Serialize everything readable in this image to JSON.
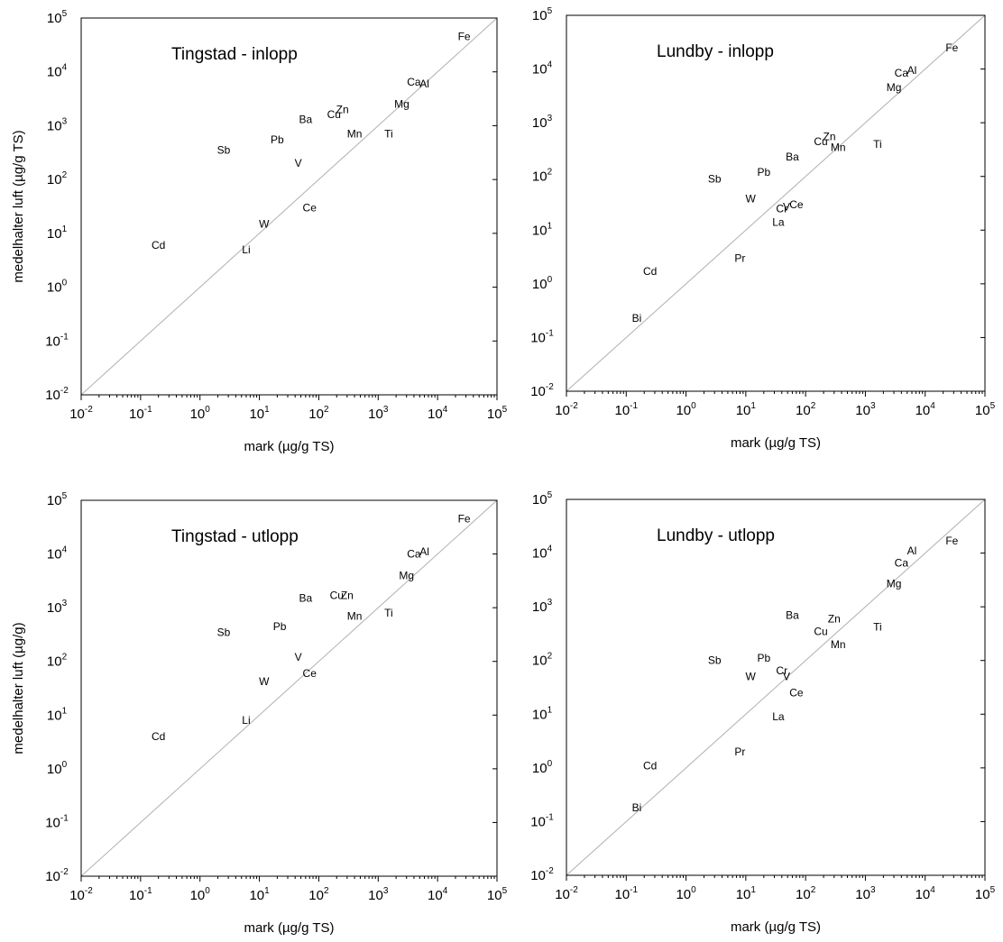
{
  "chart_data": [
    {
      "type": "scatter",
      "title": "Tingstad - inlopp",
      "xlabel": "mark (µg/g TS)",
      "ylabel": "medelhalter luft (µg/g TS)",
      "xlim": [
        0.01,
        100000
      ],
      "ylim": [
        0.01,
        100000
      ],
      "scale": "log",
      "reference_line": "1:1",
      "points": [
        {
          "label": "Fe",
          "x": 28000,
          "y": 45000
        },
        {
          "label": "Ca",
          "x": 4000,
          "y": 6500
        },
        {
          "label": "Al",
          "x": 6000,
          "y": 6000
        },
        {
          "label": "Mg",
          "x": 2500,
          "y": 2500
        },
        {
          "label": "Ti",
          "x": 1500,
          "y": 700
        },
        {
          "label": "Zn",
          "x": 250,
          "y": 2000
        },
        {
          "label": "Cu",
          "x": 180,
          "y": 1600
        },
        {
          "label": "Mn",
          "x": 400,
          "y": 700
        },
        {
          "label": "Ba",
          "x": 60,
          "y": 1300
        },
        {
          "label": "Pb",
          "x": 20,
          "y": 550
        },
        {
          "label": "V",
          "x": 45,
          "y": 200
        },
        {
          "label": "Sb",
          "x": 2.5,
          "y": 350
        },
        {
          "label": "Ce",
          "x": 70,
          "y": 30
        },
        {
          "label": "W",
          "x": 12,
          "y": 15
        },
        {
          "label": "Li",
          "x": 6,
          "y": 5
        },
        {
          "label": "Cd",
          "x": 0.2,
          "y": 6
        }
      ]
    },
    {
      "type": "scatter",
      "title": "Lundby - inlopp",
      "xlabel": "mark (µg/g TS)",
      "ylabel": "",
      "xlim": [
        0.01,
        100000
      ],
      "ylim": [
        0.01,
        100000
      ],
      "scale": "log",
      "reference_line": "1:1",
      "points": [
        {
          "label": "Fe",
          "x": 28000,
          "y": 25000
        },
        {
          "label": "Ca",
          "x": 4000,
          "y": 8500
        },
        {
          "label": "Al",
          "x": 6000,
          "y": 9500
        },
        {
          "label": "Mg",
          "x": 3000,
          "y": 4500
        },
        {
          "label": "Ti",
          "x": 1600,
          "y": 400
        },
        {
          "label": "Zn",
          "x": 250,
          "y": 550
        },
        {
          "label": "Cu",
          "x": 180,
          "y": 450
        },
        {
          "label": "Mn",
          "x": 350,
          "y": 350
        },
        {
          "label": "Ba",
          "x": 60,
          "y": 230
        },
        {
          "label": "Pb",
          "x": 20,
          "y": 120
        },
        {
          "label": "Sb",
          "x": 3,
          "y": 90
        },
        {
          "label": "W",
          "x": 12,
          "y": 38
        },
        {
          "label": "Cr",
          "x": 40,
          "y": 25
        },
        {
          "label": "V",
          "x": 48,
          "y": 27
        },
        {
          "label": "Ce",
          "x": 70,
          "y": 30
        },
        {
          "label": "La",
          "x": 35,
          "y": 14
        },
        {
          "label": "Pr",
          "x": 8,
          "y": 3
        },
        {
          "label": "Cd",
          "x": 0.25,
          "y": 1.7
        },
        {
          "label": "Bi",
          "x": 0.15,
          "y": 0.23
        }
      ]
    },
    {
      "type": "scatter",
      "title": "Tingstad - utlopp",
      "xlabel": "mark (µg/g TS)",
      "ylabel": "medelhalter luft (µg/g)",
      "xlim": [
        0.01,
        100000
      ],
      "ylim": [
        0.01,
        100000
      ],
      "scale": "log",
      "reference_line": "1:1",
      "points": [
        {
          "label": "Fe",
          "x": 28000,
          "y": 45000
        },
        {
          "label": "Ca",
          "x": 4000,
          "y": 10000
        },
        {
          "label": "Al",
          "x": 6000,
          "y": 11000
        },
        {
          "label": "Mg",
          "x": 3000,
          "y": 4000
        },
        {
          "label": "Ti",
          "x": 1500,
          "y": 800
        },
        {
          "label": "Zn",
          "x": 300,
          "y": 1700
        },
        {
          "label": "Cu",
          "x": 200,
          "y": 1700
        },
        {
          "label": "Mn",
          "x": 400,
          "y": 700
        },
        {
          "label": "Ba",
          "x": 60,
          "y": 1500
        },
        {
          "label": "Pb",
          "x": 22,
          "y": 450
        },
        {
          "label": "Sb",
          "x": 2.5,
          "y": 350
        },
        {
          "label": "V",
          "x": 45,
          "y": 120
        },
        {
          "label": "Ce",
          "x": 70,
          "y": 60
        },
        {
          "label": "W",
          "x": 12,
          "y": 42
        },
        {
          "label": "Li",
          "x": 6,
          "y": 8
        },
        {
          "label": "Cd",
          "x": 0.2,
          "y": 4
        }
      ]
    },
    {
      "type": "scatter",
      "title": "Lundby - utlopp",
      "xlabel": "mark (µg/g TS)",
      "ylabel": "",
      "xlim": [
        0.01,
        100000
      ],
      "ylim": [
        0.01,
        100000
      ],
      "scale": "log",
      "reference_line": "1:1",
      "points": [
        {
          "label": "Fe",
          "x": 28000,
          "y": 17000
        },
        {
          "label": "Al",
          "x": 6000,
          "y": 11000
        },
        {
          "label": "Ca",
          "x": 4000,
          "y": 6500
        },
        {
          "label": "Mg",
          "x": 3000,
          "y": 2700
        },
        {
          "label": "Ti",
          "x": 1600,
          "y": 420
        },
        {
          "label": "Zn",
          "x": 300,
          "y": 600
        },
        {
          "label": "Cu",
          "x": 180,
          "y": 350
        },
        {
          "label": "Mn",
          "x": 350,
          "y": 200
        },
        {
          "label": "Ba",
          "x": 60,
          "y": 700
        },
        {
          "label": "Pb",
          "x": 20,
          "y": 110
        },
        {
          "label": "Cr",
          "x": 40,
          "y": 65
        },
        {
          "label": "V",
          "x": 48,
          "y": 50
        },
        {
          "label": "Sb",
          "x": 3,
          "y": 100
        },
        {
          "label": "W",
          "x": 12,
          "y": 50
        },
        {
          "label": "Ce",
          "x": 70,
          "y": 25
        },
        {
          "label": "La",
          "x": 35,
          "y": 9
        },
        {
          "label": "Pr",
          "x": 8,
          "y": 2
        },
        {
          "label": "Cd",
          "x": 0.25,
          "y": 1.1
        },
        {
          "label": "Bi",
          "x": 0.15,
          "y": 0.18
        }
      ]
    }
  ]
}
